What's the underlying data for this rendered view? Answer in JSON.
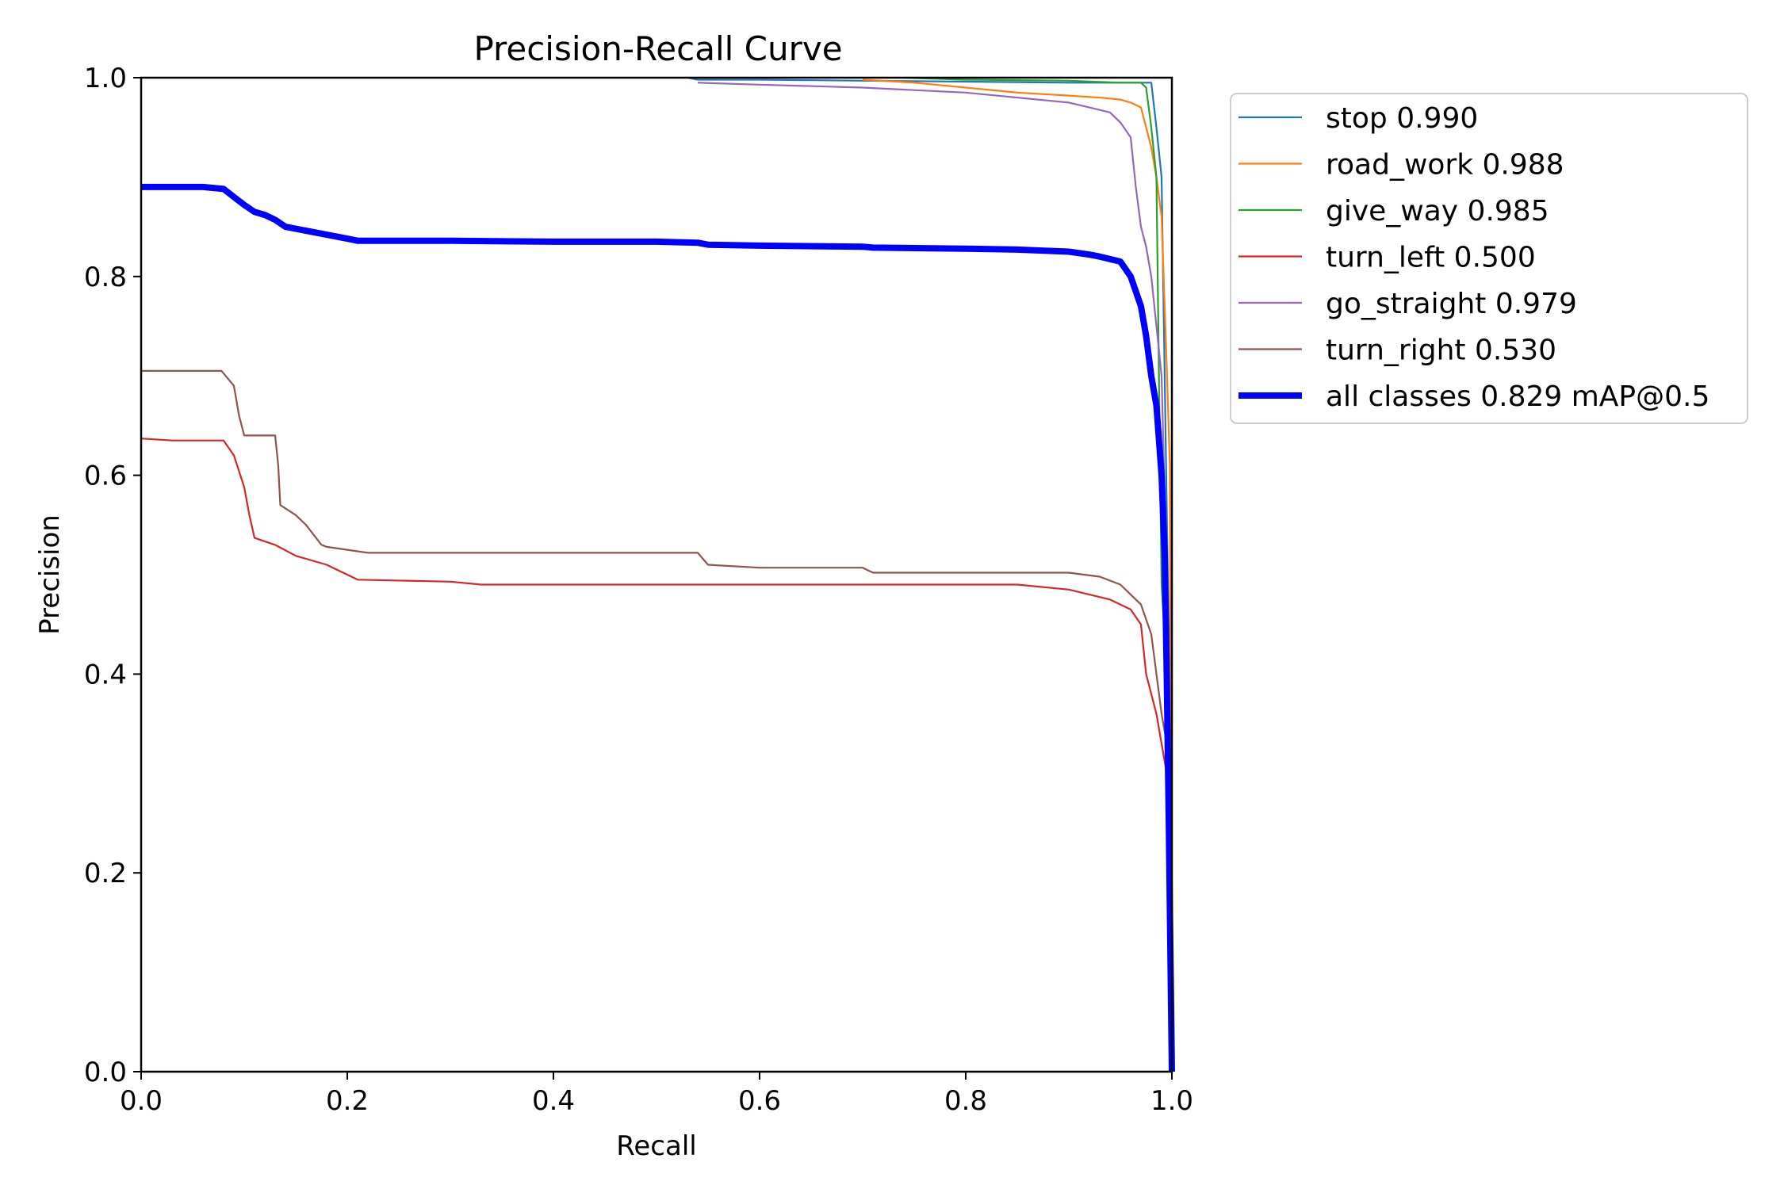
{
  "chart_data": {
    "type": "line",
    "title": "Precision-Recall Curve",
    "xlabel": "Recall",
    "ylabel": "Precision",
    "xlim": [
      0,
      1
    ],
    "ylim": [
      0,
      1
    ],
    "xticks": [
      "0.0",
      "0.2",
      "0.4",
      "0.6",
      "0.8",
      "1.0"
    ],
    "yticks": [
      "0.0",
      "0.2",
      "0.4",
      "0.6",
      "0.8",
      "1.0"
    ],
    "grid": false,
    "legend_placement": "outside-top-right",
    "series": [
      {
        "name": "stop 0.990",
        "color": "#1f77b4",
        "width": "thin",
        "x": [
          0.53,
          0.54,
          0.6,
          0.7,
          0.8,
          0.9,
          0.95,
          0.98,
          0.985,
          0.99,
          0.993,
          0.996,
          0.999,
          1.0
        ],
        "y": [
          1.0,
          0.998,
          0.998,
          0.997,
          0.996,
          0.995,
          0.995,
          0.995,
          0.95,
          0.9,
          0.7,
          0.5,
          0.3,
          0.0
        ]
      },
      {
        "name": "road_work 0.988",
        "color": "#ff7f0e",
        "width": "thin",
        "x": [
          0.7,
          0.75,
          0.8,
          0.85,
          0.9,
          0.93,
          0.95,
          0.96,
          0.97,
          0.975,
          0.98,
          0.985,
          0.99,
          0.995,
          0.998,
          1.0
        ],
        "y": [
          0.998,
          0.995,
          0.99,
          0.985,
          0.982,
          0.98,
          0.978,
          0.975,
          0.97,
          0.95,
          0.93,
          0.9,
          0.86,
          0.71,
          0.61,
          0.0
        ]
      },
      {
        "name": "give_way 0.985",
        "color": "#2ca02c",
        "width": "thin",
        "x": [
          0.74,
          0.8,
          0.9,
          0.95,
          0.97,
          0.975,
          0.98,
          0.985,
          0.99,
          0.995,
          0.998,
          1.0
        ],
        "y": [
          1.0,
          0.998,
          0.997,
          0.995,
          0.995,
          0.99,
          0.95,
          0.9,
          0.49,
          0.4,
          0.25,
          0.0
        ]
      },
      {
        "name": "turn_left 0.500",
        "color": "#d62728",
        "width": "thin",
        "x": [
          0.0,
          0.03,
          0.08,
          0.09,
          0.1,
          0.105,
          0.11,
          0.13,
          0.15,
          0.18,
          0.2,
          0.21,
          0.3,
          0.33,
          0.5,
          0.7,
          0.85,
          0.9,
          0.94,
          0.96,
          0.97,
          0.975,
          0.98,
          0.985,
          0.99,
          0.995,
          1.0
        ],
        "y": [
          0.637,
          0.635,
          0.635,
          0.62,
          0.588,
          0.56,
          0.537,
          0.53,
          0.519,
          0.51,
          0.5,
          0.495,
          0.493,
          0.49,
          0.49,
          0.49,
          0.49,
          0.485,
          0.475,
          0.465,
          0.45,
          0.4,
          0.38,
          0.36,
          0.33,
          0.3,
          0.0
        ]
      },
      {
        "name": "go_straight 0.979",
        "color": "#9467bd",
        "width": "thin",
        "x": [
          0.54,
          0.6,
          0.7,
          0.8,
          0.85,
          0.9,
          0.92,
          0.94,
          0.95,
          0.96,
          0.965,
          0.97,
          0.975,
          0.98,
          0.985,
          0.99,
          0.995,
          0.998,
          1.0
        ],
        "y": [
          0.995,
          0.993,
          0.99,
          0.985,
          0.98,
          0.975,
          0.97,
          0.965,
          0.955,
          0.94,
          0.89,
          0.85,
          0.83,
          0.8,
          0.75,
          0.7,
          0.5,
          0.3,
          0.0
        ]
      },
      {
        "name": "turn_right 0.530",
        "color": "#8c564b",
        "width": "thin",
        "x": [
          0.0,
          0.05,
          0.078,
          0.09,
          0.095,
          0.1,
          0.13,
          0.133,
          0.135,
          0.15,
          0.16,
          0.175,
          0.18,
          0.2,
          0.22,
          0.3,
          0.4,
          0.54,
          0.55,
          0.6,
          0.7,
          0.71,
          0.8,
          0.9,
          0.93,
          0.95,
          0.96,
          0.97,
          0.98,
          0.985,
          0.99,
          0.995,
          1.0
        ],
        "y": [
          0.705,
          0.705,
          0.705,
          0.69,
          0.66,
          0.64,
          0.64,
          0.61,
          0.57,
          0.56,
          0.55,
          0.53,
          0.528,
          0.525,
          0.522,
          0.522,
          0.522,
          0.522,
          0.51,
          0.507,
          0.507,
          0.502,
          0.502,
          0.502,
          0.498,
          0.49,
          0.48,
          0.47,
          0.44,
          0.4,
          0.36,
          0.33,
          0.0
        ]
      },
      {
        "name": "all classes 0.829 mAP@0.5",
        "color": "#0000ff",
        "width": "thick",
        "x": [
          0.0,
          0.03,
          0.06,
          0.08,
          0.09,
          0.1,
          0.11,
          0.12,
          0.13,
          0.14,
          0.16,
          0.18,
          0.2,
          0.21,
          0.25,
          0.3,
          0.4,
          0.5,
          0.54,
          0.55,
          0.6,
          0.7,
          0.71,
          0.8,
          0.85,
          0.9,
          0.92,
          0.93,
          0.95,
          0.96,
          0.965,
          0.97,
          0.975,
          0.98,
          0.985,
          0.99,
          0.993,
          0.995,
          0.997,
          1.0
        ],
        "y": [
          0.89,
          0.89,
          0.89,
          0.888,
          0.88,
          0.872,
          0.865,
          0.862,
          0.857,
          0.85,
          0.846,
          0.842,
          0.838,
          0.836,
          0.836,
          0.836,
          0.835,
          0.835,
          0.834,
          0.832,
          0.831,
          0.83,
          0.829,
          0.828,
          0.827,
          0.825,
          0.822,
          0.82,
          0.815,
          0.8,
          0.785,
          0.77,
          0.74,
          0.7,
          0.67,
          0.6,
          0.52,
          0.4,
          0.25,
          0.0
        ]
      }
    ]
  }
}
